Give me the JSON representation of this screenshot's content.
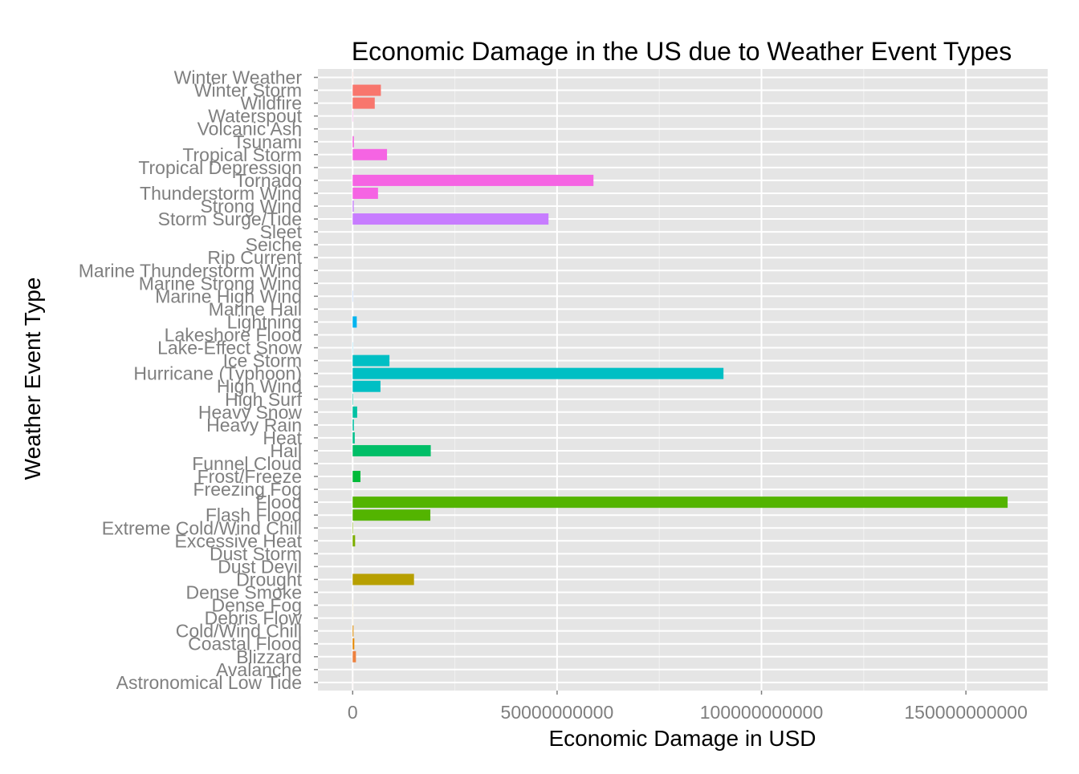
{
  "chart_data": {
    "type": "bar",
    "orientation": "horizontal",
    "title": "Economic Damage in the US due to Weather Event Types",
    "xlabel": "Economic Damage in USD",
    "ylabel": "Weather Event Type",
    "xlim": [
      -8500000000,
      170000000000
    ],
    "x_ticks": [
      0,
      50000000000,
      100000000000,
      150000000000
    ],
    "x_tick_labels": [
      "0",
      "50000000000",
      "100000000000",
      "150000000000"
    ],
    "grid": true,
    "legend": "none",
    "categories": [
      "Winter Weather",
      "Winter Storm",
      "Wildfire",
      "Waterspout",
      "Volcanic Ash",
      "Tsunami",
      "Tropical Storm",
      "Tropical Depression",
      "Tornado",
      "Thunderstorm Wind",
      "Strong Wind",
      "Storm Surge/Tide",
      "Sleet",
      "Seiche",
      "Rip Current",
      "Marine Thunderstorm Wind",
      "Marine Strong Wind",
      "Marine High Wind",
      "Marine Hail",
      "Lightning",
      "Lakeshore Flood",
      "Lake-Effect Snow",
      "Ice Storm",
      "Hurricane (Typhoon)",
      "High Wind",
      "High Surf",
      "Heavy Snow",
      "Heavy Rain",
      "Heat",
      "Hail",
      "Funnel Cloud",
      "Frost/Freeze",
      "Freezing Fog",
      "Flood",
      "Flash Flood",
      "Extreme Cold/Wind Chill",
      "Excessive Heat",
      "Dust Storm",
      "Dust Devil",
      "Drought",
      "Dense Smoke",
      "Dense Fog",
      "Debris Flow",
      "Cold/Wind Chill",
      "Coastal Flood",
      "Blizzard",
      "Avalanche",
      "Astronomical Low Tide"
    ],
    "values": [
      30000000,
      6900000000,
      5400000000,
      60000000,
      500000,
      300000000,
      8400000000,
      2000000,
      58900000000,
      6200000000,
      260000000,
      47900000000,
      2000000,
      1000000,
      160000,
      400000,
      5000000,
      50000000,
      400000,
      1000000000,
      7500000,
      40000000,
      9000000000,
      90700000000,
      6800000000,
      100000000,
      1100000000,
      300000000,
      500000000,
      19100000000,
      200000,
      1900000000,
      2000000,
      160200000000,
      19000000000,
      100000000,
      600000000,
      6000000,
      2000000,
      15000000000,
      100000,
      20000000,
      15000000,
      200000000,
      400000000,
      800000000,
      3000000,
      10000000
    ],
    "colors": [
      "#F8766D",
      "#F8766D",
      "#F8766D",
      "#F564E3",
      "#F564E3",
      "#F564E3",
      "#F564E3",
      "#F564E3",
      "#F564E3",
      "#F564E3",
      "#C77CFF",
      "#C77CFF",
      "#C77CFF",
      "#C77CFF",
      "#619CFF",
      "#619CFF",
      "#619CFF",
      "#619CFF",
      "#00B4EF",
      "#00B4EF",
      "#00B4EF",
      "#00B4EF",
      "#00BFC4",
      "#00BFC4",
      "#00BFC4",
      "#00C1A3",
      "#00C1A3",
      "#00C1A3",
      "#00C08B",
      "#00BE67",
      "#00BE67",
      "#00BA38",
      "#00BA38",
      "#53B400",
      "#53B400",
      "#7CAE00",
      "#7CAE00",
      "#A3A500",
      "#A3A500",
      "#B79F00",
      "#B79F00",
      "#CD9600",
      "#CD9600",
      "#DE8C00",
      "#E58700",
      "#ED813E",
      "#F8766D",
      "#F8766D"
    ]
  }
}
